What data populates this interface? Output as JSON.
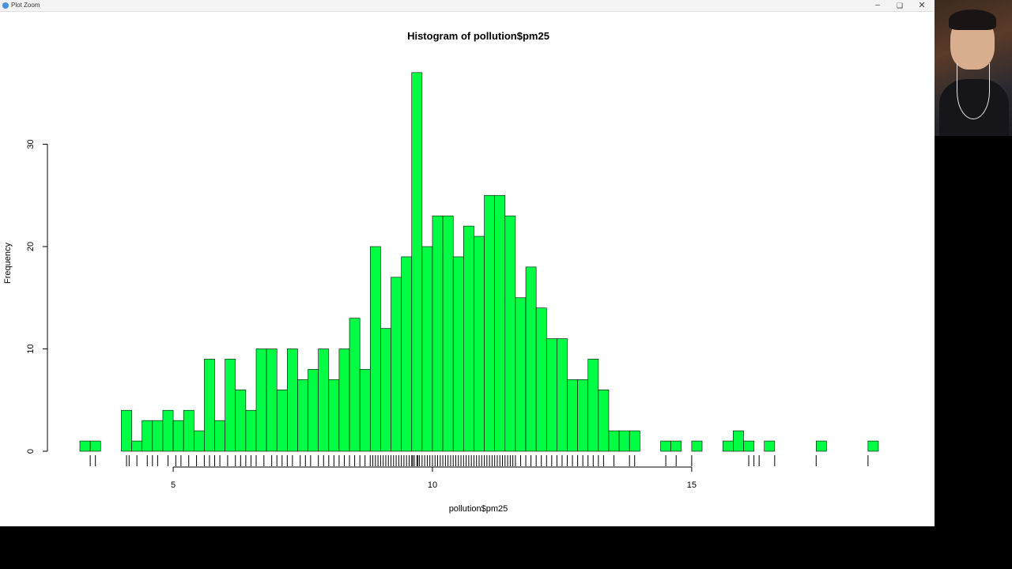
{
  "window": {
    "title": "Plot Zoom",
    "icons": {
      "app": "app-icon",
      "minimize": "minimize-icon",
      "maximize": "maximize-icon",
      "close": "close-icon"
    }
  },
  "webcam": {
    "description_icon": "webcam-feed"
  },
  "colors": {
    "bar_fill": "#00ff44",
    "bar_stroke": "#000000",
    "rug": "#000000",
    "axis": "#000000"
  },
  "chart_data": {
    "type": "bar",
    "title": "Histogram of pollution$pm25",
    "xlabel": "pollution$pm25",
    "ylabel": "Frequency",
    "bin_width": 0.2,
    "bin_start": 3.2,
    "counts": [
      1,
      1,
      0,
      0,
      4,
      1,
      3,
      3,
      4,
      3,
      4,
      2,
      9,
      3,
      9,
      6,
      4,
      10,
      10,
      6,
      10,
      7,
      8,
      10,
      7,
      10,
      13,
      8,
      20,
      12,
      17,
      19,
      37,
      20,
      23,
      23,
      19,
      22,
      21,
      25,
      25,
      23,
      15,
      18,
      14,
      11,
      11,
      7,
      7,
      9,
      6,
      2,
      2,
      2,
      0,
      0,
      1,
      1,
      0,
      1,
      0,
      0,
      1,
      2,
      1,
      0,
      1,
      0,
      0,
      0,
      0,
      1,
      0,
      0,
      0,
      0,
      1
    ],
    "xlim": [
      3.2,
      18.6
    ],
    "ylim": [
      0,
      37
    ],
    "xticks": [
      5,
      10,
      15
    ],
    "yticks": [
      0,
      10,
      20,
      30
    ],
    "rug": [
      3.4,
      3.5,
      4.1,
      4.15,
      4.3,
      4.5,
      4.6,
      4.7,
      4.9,
      5.05,
      5.15,
      5.3,
      5.45,
      5.6,
      5.7,
      5.8,
      5.9,
      6.05,
      6.2,
      6.3,
      6.4,
      6.5,
      6.6,
      6.75,
      6.9,
      7.0,
      7.1,
      7.2,
      7.3,
      7.45,
      7.55,
      7.65,
      7.8,
      7.9,
      8.0,
      8.1,
      8.2,
      8.3,
      8.4,
      8.5,
      8.6,
      8.7,
      8.8,
      8.85,
      8.9,
      8.95,
      9.0,
      9.05,
      9.1,
      9.15,
      9.2,
      9.25,
      9.3,
      9.35,
      9.4,
      9.45,
      9.5,
      9.55,
      9.6,
      9.62,
      9.65,
      9.7,
      9.72,
      9.75,
      9.8,
      9.85,
      9.9,
      9.95,
      10.0,
      10.05,
      10.1,
      10.15,
      10.2,
      10.25,
      10.3,
      10.35,
      10.4,
      10.45,
      10.5,
      10.55,
      10.6,
      10.65,
      10.7,
      10.75,
      10.8,
      10.85,
      10.9,
      10.95,
      11.0,
      11.05,
      11.1,
      11.15,
      11.2,
      11.25,
      11.3,
      11.35,
      11.4,
      11.45,
      11.5,
      11.55,
      11.6,
      11.7,
      11.8,
      11.9,
      12.0,
      12.1,
      12.2,
      12.3,
      12.4,
      12.5,
      12.6,
      12.7,
      12.8,
      12.9,
      13.0,
      13.1,
      13.2,
      13.3,
      13.5,
      13.8,
      13.9,
      14.5,
      14.7,
      15.0,
      16.1,
      16.2,
      16.3,
      16.6,
      17.4,
      18.4
    ]
  }
}
